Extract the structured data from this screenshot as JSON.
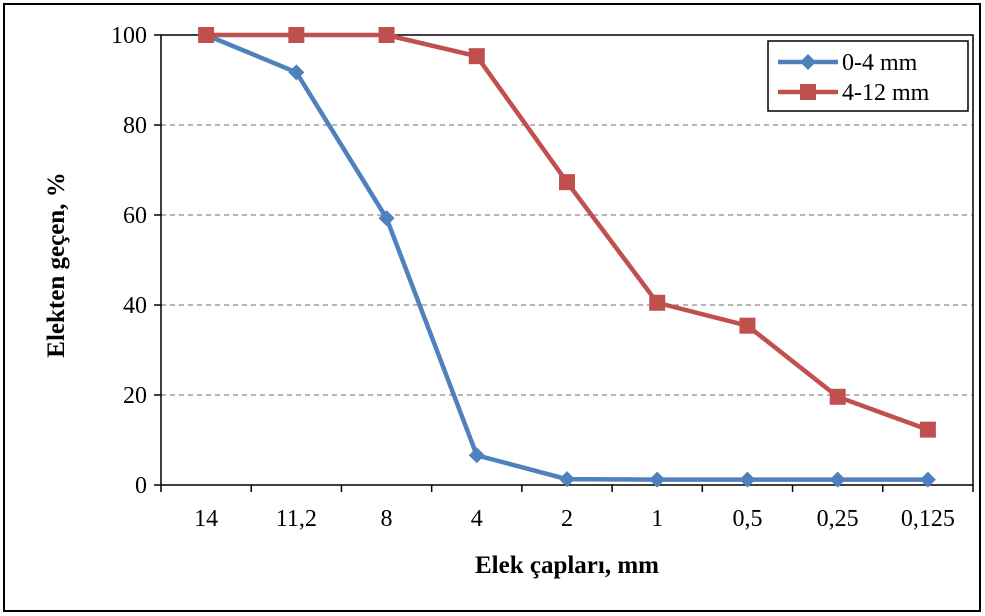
{
  "chart_data": {
    "type": "line",
    "title": "",
    "xlabel": "Elek çapları, mm",
    "ylabel": "Elekten geçen, %",
    "categories": [
      "14",
      "11,2",
      "8",
      "4",
      "2",
      "1",
      "0,5",
      "0,25",
      "0,125"
    ],
    "ylim": [
      0,
      100
    ],
    "yticks": [
      0,
      20,
      40,
      60,
      80,
      100
    ],
    "grid": "horizontal dashed",
    "legend_position": "top-right",
    "series": [
      {
        "name": "0-4 mm",
        "color": "#4F81BD",
        "marker": "diamond",
        "values": [
          100,
          91.7,
          59.3,
          6.6,
          1.3,
          1.2,
          1.2,
          1.2,
          1.2
        ]
      },
      {
        "name": "4-12 mm",
        "color": "#C0504D",
        "marker": "square",
        "values": [
          100,
          100,
          100,
          95.3,
          67.3,
          40.5,
          35.4,
          19.6,
          12.3
        ]
      }
    ]
  }
}
